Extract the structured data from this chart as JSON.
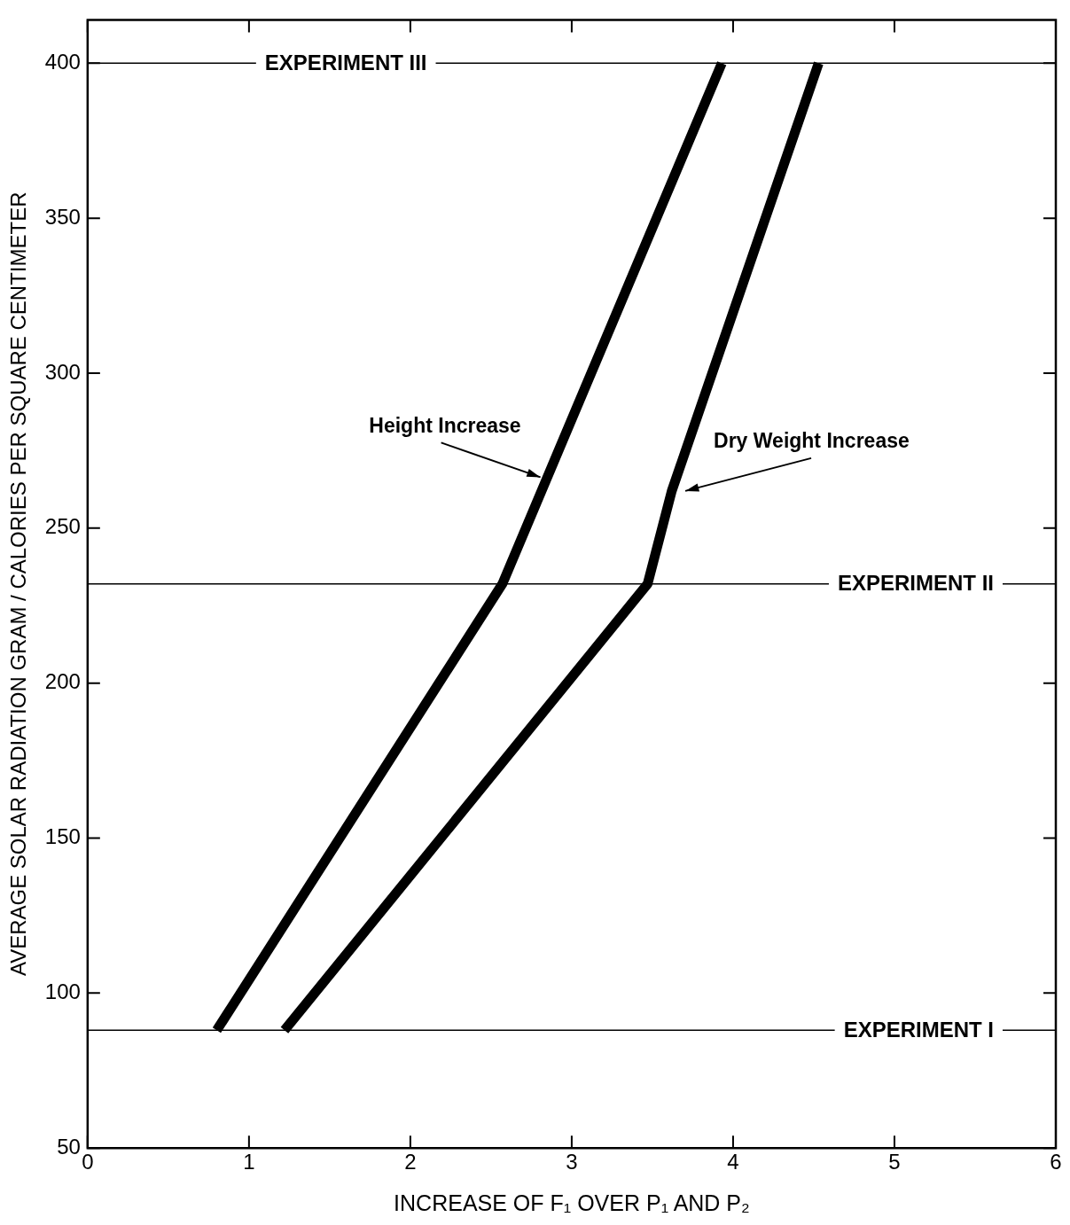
{
  "chart_data": {
    "type": "line",
    "xlabel": "INCREASE OF F₁ OVER P₁ AND P₂",
    "ylabel": "AVERAGE SOLAR RADIATION GRAM / CALORIES PER SQUARE CENTIMETER",
    "series": [
      {
        "color": "#000000",
        "x": [
          0.8,
          2.57,
          3.93
        ],
        "values": [
          88,
          232,
          400
        ]
      },
      {
        "color": "#000000",
        "x": [
          1.22,
          3.47,
          3.62,
          4.53
        ],
        "values": [
          88,
          232,
          262,
          400
        ]
      }
    ],
    "xlim": [
      0,
      6
    ],
    "xticks": [
      0,
      1,
      2,
      3,
      4,
      5,
      6
    ],
    "ylim": [
      50,
      414
    ],
    "yticks": [
      50,
      100,
      150,
      200,
      250,
      300,
      350,
      400
    ],
    "ref_lines": [
      {
        "axis": "y",
        "value": 400,
        "label": "EXPERIMENT III"
      },
      {
        "axis": "y",
        "value": 232,
        "label": "EXPERIMENT II"
      },
      {
        "axis": "y",
        "value": 88,
        "label": "EXPERIMENT I"
      }
    ],
    "annotations": [
      {
        "text": "Height Increase",
        "x": 2.85,
        "y": 267
      },
      {
        "text": "Dry Weight Increase",
        "x": 3.66,
        "y": 262
      }
    ],
    "grid": false,
    "legend": false,
    "marker": "none",
    "line_style": "solid"
  }
}
